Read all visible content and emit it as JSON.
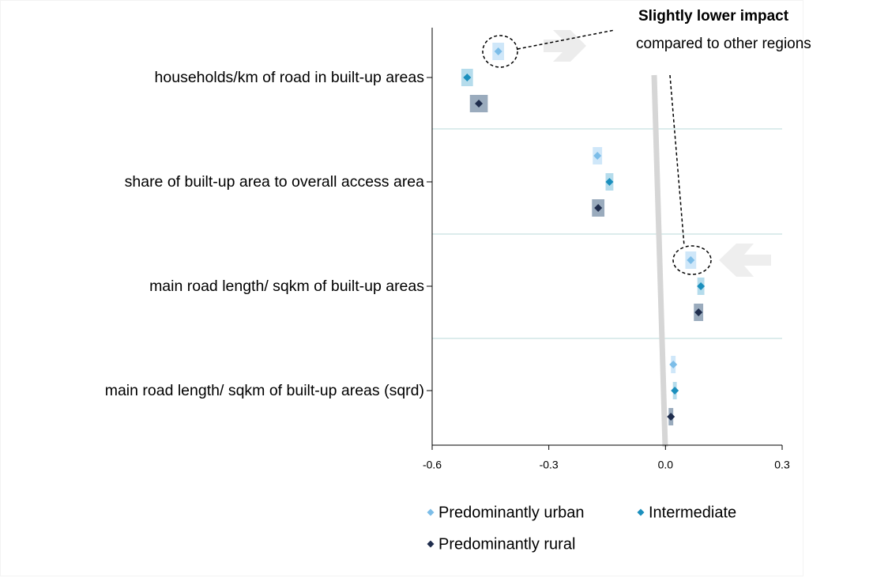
{
  "chart_data": {
    "type": "dot",
    "categories": [
      "households/km of road in built-up areas",
      "share of built-up area to overall access area",
      "main road length/ sqkm of built-up areas",
      "main road length/ sqkm of built-up areas (sqrd)"
    ],
    "series": [
      {
        "name": "Predominantly urban",
        "color": "#7cbde8",
        "ci_color": "#cfe7f9",
        "values": [
          -0.43,
          -0.175,
          0.065,
          0.02
        ],
        "errors": [
          0.015,
          0.012,
          0.014,
          0.006
        ]
      },
      {
        "name": "Intermediate",
        "color": "#1b8fbd",
        "ci_color": "#b5dcec",
        "values": [
          -0.51,
          -0.144,
          0.091,
          0.024
        ],
        "errors": [
          0.015,
          0.01,
          0.009,
          0.005
        ]
      },
      {
        "name": "Predominantly rural",
        "color": "#1f2d4d",
        "ci_color": "#9aabbd",
        "values": [
          -0.48,
          -0.173,
          0.085,
          0.014
        ],
        "errors": [
          0.023,
          0.016,
          0.012,
          0.006
        ]
      }
    ],
    "xlim": [
      -0.6,
      0.3
    ],
    "xticks": [
      -0.6,
      -0.3,
      {
        "value": 0,
        "label": "0.0"
      },
      0.3
    ],
    "annotations": [
      "Slightly lower impact",
      "compared to other regions"
    ]
  }
}
